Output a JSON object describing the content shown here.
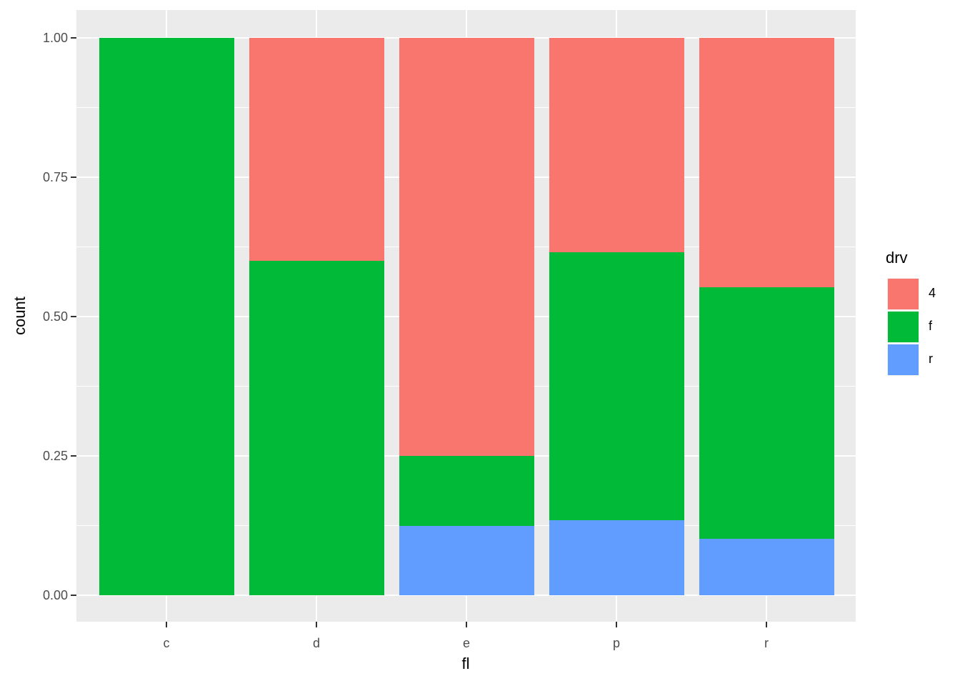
{
  "chart_data": {
    "type": "bar",
    "subtype": "stacked-filled-proportion",
    "title": "",
    "xlabel": "fl",
    "ylabel": "count",
    "categories": [
      "c",
      "d",
      "e",
      "p",
      "r"
    ],
    "series": [
      {
        "name": "4",
        "color": "#F8766D",
        "values": [
          0.0,
          0.4,
          0.75,
          0.385,
          0.447
        ]
      },
      {
        "name": "f",
        "color": "#00BA38",
        "values": [
          1.0,
          0.6,
          0.125,
          0.48,
          0.452
        ]
      },
      {
        "name": "r",
        "color": "#619CFF",
        "values": [
          0.0,
          0.0,
          0.125,
          0.135,
          0.101
        ]
      }
    ],
    "stack_order_bottom_to_top": [
      "r",
      "f",
      "4"
    ],
    "ylim": [
      0,
      1
    ],
    "yticks": [
      0.0,
      0.25,
      0.5,
      0.75,
      1.0
    ],
    "ytick_labels": [
      "0.00",
      "0.25",
      "0.50",
      "0.75",
      "1.00"
    ],
    "yticks_minor": [
      0.125,
      0.375,
      0.625,
      0.875
    ],
    "grid": "major-and-minor-white-on-gray",
    "legend_title": "drv",
    "legend_position": "right"
  },
  "style": {
    "panel_bg": "#EBEBEB",
    "grid_color": "#FFFFFF",
    "tick_color": "#333333",
    "tick_label_color": "#4D4D4D",
    "axis_title_color": "#000000"
  }
}
